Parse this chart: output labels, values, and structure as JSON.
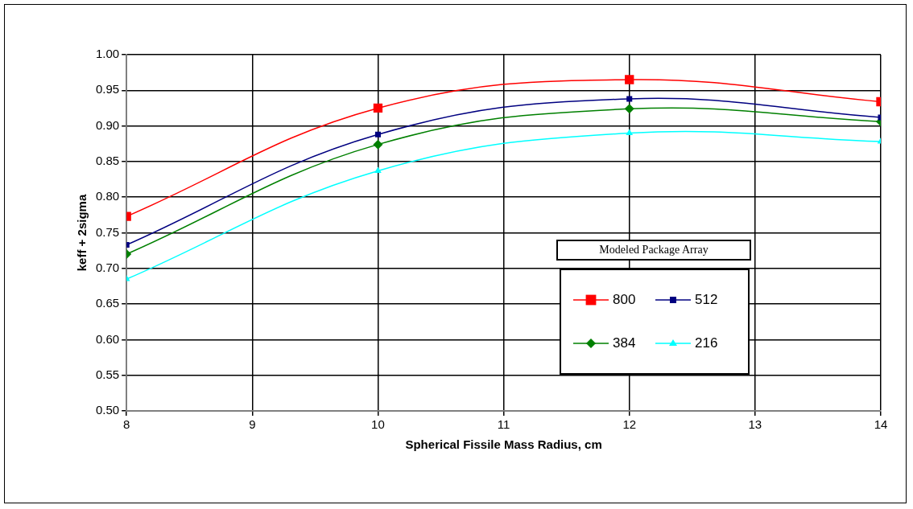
{
  "chart_data": {
    "type": "line",
    "xlabel": "Spherical Fissile Mass Radius, cm",
    "ylabel": "keff + 2sigma",
    "legend_title": "Modeled Package Array",
    "x": [
      8,
      10,
      12,
      14
    ],
    "series": [
      {
        "name": "800",
        "color": "#ff0000",
        "marker": "square",
        "values": [
          0.773,
          0.925,
          0.965,
          0.934
        ]
      },
      {
        "name": "512",
        "color": "#000080",
        "marker": "square",
        "values": [
          0.733,
          0.888,
          0.938,
          0.912
        ]
      },
      {
        "name": "384",
        "color": "#008000",
        "marker": "diamond",
        "values": [
          0.72,
          0.874,
          0.924,
          0.906
        ]
      },
      {
        "name": "216",
        "color": "#00ffff",
        "marker": "triangle",
        "values": [
          0.685,
          0.837,
          0.89,
          0.878
        ]
      }
    ],
    "xlim": [
      8,
      14
    ],
    "xticks": [
      8,
      9,
      10,
      11,
      12,
      13,
      14
    ],
    "ylim": [
      0.5,
      1.0
    ],
    "yticks": [
      {
        "value": 0.5,
        "label": "0.50"
      },
      {
        "value": 0.55,
        "label": "0.55"
      },
      {
        "value": 0.6,
        "label": "0.60"
      },
      {
        "value": 0.65,
        "label": "0.65"
      },
      {
        "value": 0.7,
        "label": "0.70"
      },
      {
        "value": 0.75,
        "label": "0.75"
      },
      {
        "value": 0.8,
        "label": "0.80"
      },
      {
        "value": 0.85,
        "label": "0.85"
      },
      {
        "value": 0.9,
        "label": "0.90"
      },
      {
        "value": 0.95,
        "label": "0.95"
      },
      {
        "value": 1.0,
        "label": "1.00"
      }
    ],
    "grid": true,
    "legend": "right",
    "line_style": "solid"
  }
}
